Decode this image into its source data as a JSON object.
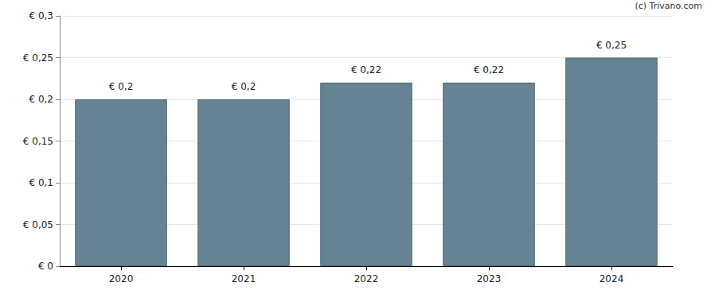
{
  "chart_data": {
    "type": "bar",
    "annotations": [
      "(c) Trivano.com"
    ],
    "categories": [
      "2020",
      "2021",
      "2022",
      "2023",
      "2024"
    ],
    "values": [
      0.2,
      0.2,
      0.22,
      0.22,
      0.25
    ],
    "value_labels": [
      "€ 0,2",
      "€ 0,2",
      "€ 0,22",
      "€ 0,22",
      "€ 0,25"
    ],
    "data_labels": true,
    "color": "#668394",
    "ylim": [
      0,
      0.3
    ],
    "yticks": [
      {
        "value": 0,
        "label": "€ 0"
      },
      {
        "value": 0.05,
        "label": "€ 0,05"
      },
      {
        "value": 0.1,
        "label": "€ 0,1"
      },
      {
        "value": 0.15,
        "label": "€ 0,15"
      },
      {
        "value": 0.2,
        "label": "€ 0,2"
      },
      {
        "value": 0.25,
        "label": "€ 0,25"
      },
      {
        "value": 0.3,
        "label": "€ 0,3"
      }
    ],
    "grid": true
  }
}
